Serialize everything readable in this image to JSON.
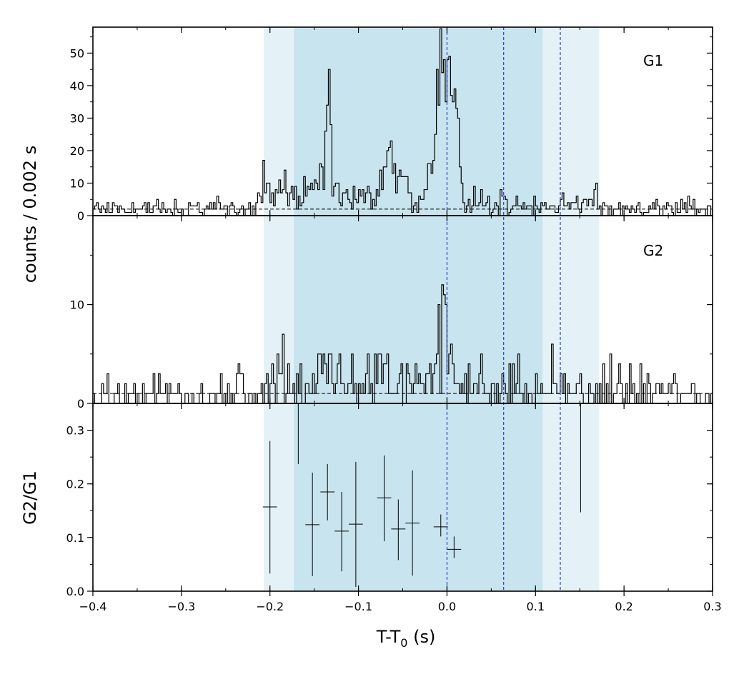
{
  "chart_data": {
    "type": "line",
    "xlabel_main": "T-T",
    "xlabel_sub": "0",
    "xlabel_unit": " (s)",
    "ylabel_counts": "counts /  0.002 s",
    "ylabel_ratio": "G2/G1",
    "xlim": [
      -0.4,
      0.3
    ],
    "x_ticks": [
      -0.4,
      -0.3,
      -0.2,
      -0.1,
      0.0,
      0.1,
      0.2,
      0.3
    ],
    "x_tick_labels": [
      "−0.4",
      "−0.3",
      "−0.2",
      "−0.1",
      "0.0",
      "0.1",
      "0.2",
      "0.3"
    ],
    "shaded_intervals": [
      {
        "x0": -0.207,
        "x1": 0.172,
        "color": "#e4f2f7"
      },
      {
        "x0": -0.173,
        "x1": 0.108,
        "color": "#c8e4ee"
      }
    ],
    "vertical_lines": {
      "x": [
        0.0,
        0.064,
        0.128
      ],
      "color": "#2a3bd8",
      "style": "dashed"
    },
    "panels": [
      {
        "name": "G1",
        "ylim": [
          0,
          58
        ],
        "y_ticks": [
          0,
          10,
          20,
          30,
          40,
          50
        ],
        "y_tick_labels": [
          "0",
          "10",
          "20",
          "30",
          "40",
          "50"
        ],
        "background": 2,
        "features": [
          [
            -0.206,
            0.004,
            7
          ],
          [
            -0.198,
            0.004,
            5
          ],
          [
            -0.19,
            0.003,
            8
          ],
          [
            -0.18,
            0.004,
            5
          ],
          [
            -0.17,
            0.003,
            4
          ],
          [
            -0.16,
            0.004,
            6
          ],
          [
            -0.15,
            0.003,
            8
          ],
          [
            -0.142,
            0.003,
            7
          ],
          [
            -0.134,
            0.0025,
            33
          ],
          [
            -0.127,
            0.003,
            8
          ],
          [
            -0.118,
            0.004,
            6
          ],
          [
            -0.108,
            0.004,
            7
          ],
          [
            -0.096,
            0.004,
            5
          ],
          [
            -0.086,
            0.004,
            3
          ],
          [
            -0.075,
            0.004,
            7
          ],
          [
            -0.066,
            0.003,
            13
          ],
          [
            -0.062,
            0.003,
            10
          ],
          [
            -0.055,
            0.004,
            9
          ],
          [
            -0.046,
            0.003,
            8
          ],
          [
            -0.037,
            0.004,
            3
          ],
          [
            -0.028,
            0.003,
            3
          ],
          [
            -0.02,
            0.004,
            9
          ],
          [
            -0.012,
            0.004,
            26
          ],
          [
            -0.006,
            0.003,
            40
          ],
          [
            0.002,
            0.004,
            37
          ],
          [
            0.01,
            0.003,
            28
          ],
          [
            0.016,
            0.002,
            8
          ],
          [
            0.03,
            0.004,
            2
          ],
          [
            0.045,
            0.004,
            2
          ],
          [
            0.065,
            0.004,
            2
          ],
          [
            0.08,
            0.004,
            2
          ],
          [
            0.095,
            0.004,
            2
          ],
          [
            0.11,
            0.004,
            3
          ],
          [
            0.128,
            0.004,
            2
          ],
          [
            0.145,
            0.004,
            3
          ],
          [
            0.16,
            0.004,
            3
          ],
          [
            0.165,
            0.003,
            4
          ]
        ]
      },
      {
        "name": "G2",
        "ylim": [
          0,
          19
        ],
        "y_ticks": [
          0,
          10
        ],
        "y_tick_labels": [
          "0",
          "10"
        ],
        "background": 1,
        "features": [
          [
            -0.204,
            0.005,
            1.5
          ],
          [
            -0.185,
            0.005,
            1.5
          ],
          [
            -0.165,
            0.005,
            1.5
          ],
          [
            -0.145,
            0.004,
            2
          ],
          [
            -0.134,
            0.003,
            4.5
          ],
          [
            -0.12,
            0.004,
            2
          ],
          [
            -0.1,
            0.004,
            2
          ],
          [
            -0.085,
            0.004,
            1.5
          ],
          [
            -0.072,
            0.004,
            2.5
          ],
          [
            -0.055,
            0.004,
            2
          ],
          [
            -0.04,
            0.004,
            1.5
          ],
          [
            -0.025,
            0.004,
            1.5
          ],
          [
            -0.01,
            0.004,
            2.5
          ],
          [
            -0.004,
            0.003,
            5.5
          ],
          [
            0.004,
            0.003,
            4
          ],
          [
            0.012,
            0.003,
            2
          ],
          [
            0.04,
            0.004,
            1
          ],
          [
            0.08,
            0.004,
            1
          ],
          [
            0.12,
            0.004,
            1
          ],
          [
            0.15,
            0.004,
            1
          ]
        ]
      },
      {
        "name": "ratio",
        "ylim": [
          0.0,
          0.35
        ],
        "y_ticks": [
          0.0,
          0.1,
          0.2,
          0.3
        ],
        "y_tick_labels": [
          "0.0",
          "0.1",
          "0.2",
          "0.3"
        ],
        "points": [
          {
            "x": -0.2,
            "xerr": 0.008,
            "y": 0.157,
            "yerr_lo": 0.124,
            "yerr_hi": 0.123
          },
          {
            "x": -0.168,
            "xerr": 0.0,
            "y": 0.35,
            "yerr_lo": 0.113,
            "yerr_hi": 0.0
          },
          {
            "x": -0.152,
            "xerr": 0.008,
            "y": 0.124,
            "yerr_lo": 0.096,
            "yerr_hi": 0.097
          },
          {
            "x": -0.135,
            "xerr": 0.008,
            "y": 0.185,
            "yerr_lo": 0.053,
            "yerr_hi": 0.052
          },
          {
            "x": -0.119,
            "xerr": 0.008,
            "y": 0.112,
            "yerr_lo": 0.075,
            "yerr_hi": 0.073
          },
          {
            "x": -0.103,
            "xerr": 0.008,
            "y": 0.125,
            "yerr_lo": 0.117,
            "yerr_hi": 0.116
          },
          {
            "x": -0.071,
            "xerr": 0.008,
            "y": 0.174,
            "yerr_lo": 0.081,
            "yerr_hi": 0.079
          },
          {
            "x": -0.055,
            "xerr": 0.008,
            "y": 0.116,
            "yerr_lo": 0.058,
            "yerr_hi": 0.055
          },
          {
            "x": -0.039,
            "xerr": 0.008,
            "y": 0.127,
            "yerr_lo": 0.098,
            "yerr_hi": 0.098
          },
          {
            "x": -0.007,
            "xerr": 0.008,
            "y": 0.12,
            "yerr_lo": 0.018,
            "yerr_hi": 0.023
          },
          {
            "x": 0.008,
            "xerr": 0.008,
            "y": 0.078,
            "yerr_lo": 0.016,
            "yerr_hi": 0.024
          },
          {
            "x": 0.151,
            "xerr": 0.0,
            "y": 0.35,
            "yerr_lo": 0.203,
            "yerr_hi": 0.0
          }
        ]
      }
    ]
  }
}
